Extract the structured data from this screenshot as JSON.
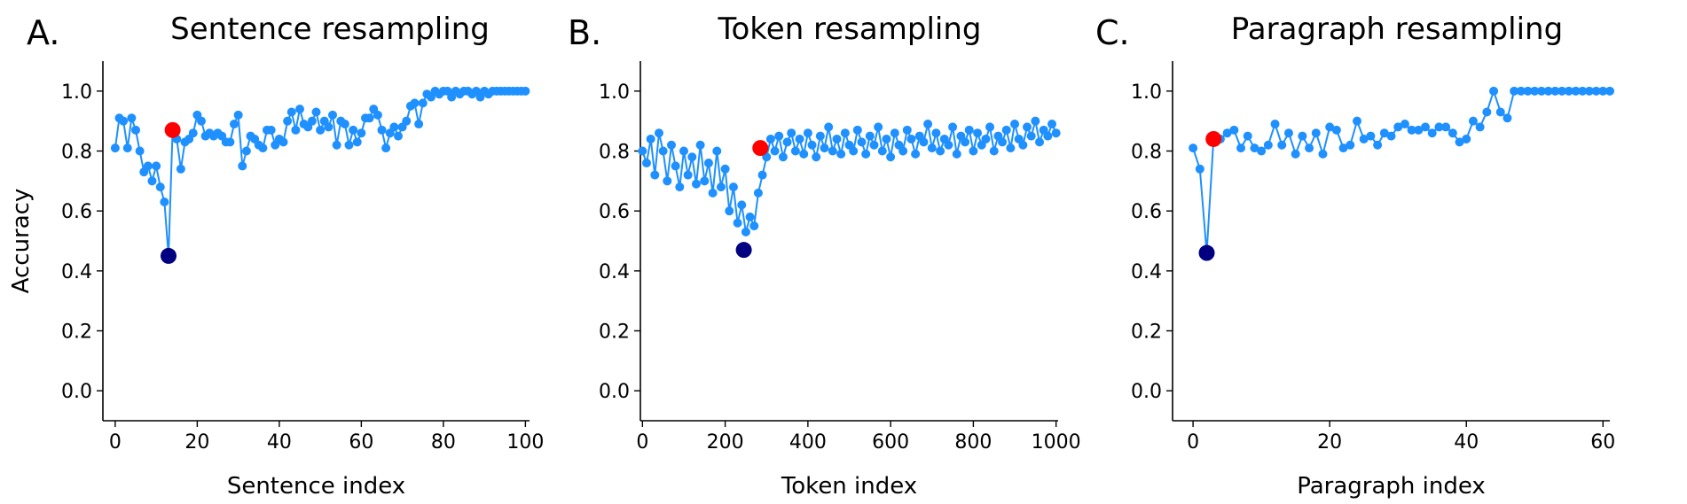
{
  "chart_data": [
    {
      "type": "line",
      "panel_letter": "A.",
      "title": "Sentence resampling",
      "xlabel": "Sentence index",
      "ylabel": "Accuracy",
      "xlim": [
        -3,
        101
      ],
      "ylim": [
        -0.1,
        1.1
      ],
      "xticks": [
        "0",
        "20",
        "40",
        "60",
        "80",
        "100"
      ],
      "yticks": [
        "0.0",
        "0.2",
        "0.4",
        "0.6",
        "0.8",
        "1.0"
      ],
      "grid": false,
      "series": [
        {
          "color": "#1e90ff",
          "x": [
            0,
            1,
            2,
            3,
            4,
            5,
            6,
            7,
            8,
            9,
            10,
            11,
            12,
            13,
            14,
            15,
            16,
            17,
            18,
            19,
            20,
            21,
            22,
            23,
            24,
            25,
            26,
            27,
            28,
            29,
            30,
            31,
            32,
            33,
            34,
            35,
            36,
            37,
            38,
            39,
            40,
            41,
            42,
            43,
            44,
            45,
            46,
            47,
            48,
            49,
            50,
            51,
            52,
            53,
            54,
            55,
            56,
            57,
            58,
            59,
            60,
            61,
            62,
            63,
            64,
            65,
            66,
            67,
            68,
            69,
            70,
            71,
            72,
            73,
            74,
            75,
            76,
            77,
            78,
            79,
            80,
            81,
            82,
            83,
            84,
            85,
            86,
            87,
            88,
            89,
            90,
            91,
            92,
            93,
            94,
            95,
            96,
            97,
            98,
            99,
            100
          ],
          "y": [
            0.81,
            0.91,
            0.9,
            0.81,
            0.91,
            0.87,
            0.8,
            0.73,
            0.75,
            0.7,
            0.75,
            0.68,
            0.63,
            0.45,
            0.87,
            0.84,
            0.74,
            0.83,
            0.84,
            0.86,
            0.92,
            0.9,
            0.85,
            0.86,
            0.85,
            0.86,
            0.85,
            0.83,
            0.83,
            0.89,
            0.92,
            0.75,
            0.8,
            0.85,
            0.84,
            0.82,
            0.81,
            0.87,
            0.87,
            0.82,
            0.84,
            0.83,
            0.9,
            0.93,
            0.87,
            0.94,
            0.89,
            0.88,
            0.9,
            0.93,
            0.87,
            0.9,
            0.88,
            0.92,
            0.82,
            0.9,
            0.89,
            0.82,
            0.87,
            0.83,
            0.86,
            0.91,
            0.91,
            0.94,
            0.92,
            0.87,
            0.81,
            0.86,
            0.88,
            0.85,
            0.88,
            0.9,
            0.95,
            0.96,
            0.89,
            0.96,
            0.99,
            0.98,
            1.0,
            0.99,
            1.0,
            1.0,
            0.98,
            1.0,
            0.99,
            1.0,
            1.0,
            0.99,
            1.0,
            0.98,
            1.0,
            0.99,
            1.0,
            1.0,
            1.0,
            1.0,
            1.0,
            1.0,
            1.0,
            1.0,
            1.0
          ]
        }
      ],
      "highlights": [
        {
          "x": 13,
          "y": 0.45,
          "color": "#000080"
        },
        {
          "x": 14,
          "y": 0.87,
          "color": "#ff0000"
        }
      ]
    },
    {
      "type": "line",
      "panel_letter": "B.",
      "title": "Token resampling",
      "xlabel": "Token index",
      "ylabel": "",
      "xlim": [
        -5,
        1005
      ],
      "ylim": [
        -0.1,
        1.1
      ],
      "xticks": [
        "0",
        "200",
        "400",
        "600",
        "800",
        "1000"
      ],
      "yticks": [
        "0.0",
        "0.2",
        "0.4",
        "0.6",
        "0.8",
        "1.0"
      ],
      "grid": false,
      "series": [
        {
          "color": "#1e90ff",
          "x": [
            0,
            10,
            20,
            30,
            40,
            50,
            60,
            70,
            80,
            90,
            100,
            110,
            120,
            130,
            140,
            150,
            160,
            170,
            180,
            190,
            200,
            210,
            220,
            230,
            240,
            250,
            260,
            270,
            280,
            290,
            300,
            310,
            320,
            330,
            340,
            350,
            360,
            370,
            380,
            390,
            400,
            410,
            420,
            430,
            440,
            450,
            460,
            470,
            480,
            490,
            500,
            510,
            520,
            530,
            540,
            550,
            560,
            570,
            580,
            590,
            600,
            610,
            620,
            630,
            640,
            650,
            660,
            670,
            680,
            690,
            700,
            710,
            720,
            730,
            740,
            750,
            760,
            770,
            780,
            790,
            800,
            810,
            820,
            830,
            840,
            850,
            860,
            870,
            880,
            890,
            900,
            910,
            920,
            930,
            940,
            950,
            960,
            970,
            980,
            990,
            1000
          ],
          "y": [
            0.8,
            0.76,
            0.84,
            0.72,
            0.86,
            0.8,
            0.7,
            0.82,
            0.75,
            0.68,
            0.8,
            0.72,
            0.78,
            0.69,
            0.82,
            0.7,
            0.76,
            0.66,
            0.8,
            0.68,
            0.74,
            0.6,
            0.68,
            0.56,
            0.62,
            0.53,
            0.58,
            0.55,
            0.66,
            0.72,
            0.78,
            0.84,
            0.8,
            0.85,
            0.78,
            0.83,
            0.86,
            0.8,
            0.84,
            0.79,
            0.86,
            0.82,
            0.78,
            0.85,
            0.81,
            0.88,
            0.8,
            0.84,
            0.79,
            0.86,
            0.82,
            0.8,
            0.87,
            0.83,
            0.79,
            0.85,
            0.82,
            0.88,
            0.8,
            0.84,
            0.78,
            0.86,
            0.82,
            0.8,
            0.87,
            0.84,
            0.79,
            0.85,
            0.83,
            0.89,
            0.81,
            0.86,
            0.8,
            0.84,
            0.82,
            0.88,
            0.79,
            0.85,
            0.83,
            0.87,
            0.8,
            0.86,
            0.82,
            0.84,
            0.88,
            0.8,
            0.85,
            0.83,
            0.87,
            0.81,
            0.89,
            0.84,
            0.82,
            0.88,
            0.85,
            0.9,
            0.83,
            0.87,
            0.85,
            0.89,
            0.86
          ]
        }
      ],
      "highlights": [
        {
          "x": 245,
          "y": 0.47,
          "color": "#000080"
        },
        {
          "x": 285,
          "y": 0.81,
          "color": "#ff0000"
        }
      ]
    },
    {
      "type": "line",
      "panel_letter": "C.",
      "title": "Paragraph resampling",
      "xlabel": "Paragraph index",
      "ylabel": "",
      "xlim": [
        -3,
        61
      ],
      "ylim": [
        -0.1,
        1.1
      ],
      "xticks": [
        "0",
        "20",
        "40",
        "60"
      ],
      "yticks": [
        "0.0",
        "0.2",
        "0.4",
        "0.6",
        "0.8",
        "1.0"
      ],
      "grid": false,
      "series": [
        {
          "color": "#1e90ff",
          "x": [
            0,
            1,
            2,
            3,
            4,
            5,
            6,
            7,
            8,
            9,
            10,
            11,
            12,
            13,
            14,
            15,
            16,
            17,
            18,
            19,
            20,
            21,
            22,
            23,
            24,
            25,
            26,
            27,
            28,
            29,
            30,
            31,
            32,
            33,
            34,
            35,
            36,
            37,
            38,
            39,
            40,
            41,
            42,
            43,
            44,
            45,
            46,
            47,
            48,
            49,
            50,
            51,
            52,
            53,
            54,
            55,
            56,
            57,
            58,
            59,
            60,
            61
          ],
          "y": [
            0.81,
            0.74,
            0.46,
            0.84,
            0.84,
            0.86,
            0.87,
            0.81,
            0.85,
            0.81,
            0.8,
            0.82,
            0.89,
            0.82,
            0.86,
            0.79,
            0.85,
            0.81,
            0.86,
            0.79,
            0.88,
            0.87,
            0.81,
            0.82,
            0.9,
            0.84,
            0.85,
            0.82,
            0.86,
            0.85,
            0.88,
            0.89,
            0.87,
            0.87,
            0.88,
            0.86,
            0.88,
            0.88,
            0.86,
            0.83,
            0.84,
            0.9,
            0.88,
            0.93,
            1.0,
            0.93,
            0.91,
            1.0,
            1.0,
            1.0,
            1.0,
            1.0,
            1.0,
            1.0,
            1.0,
            1.0,
            1.0,
            1.0,
            1.0,
            1.0,
            1.0,
            1.0
          ]
        }
      ],
      "highlights": [
        {
          "x": 2,
          "y": 0.46,
          "color": "#000080"
        },
        {
          "x": 3,
          "y": 0.84,
          "color": "#ff0000"
        }
      ]
    }
  ]
}
